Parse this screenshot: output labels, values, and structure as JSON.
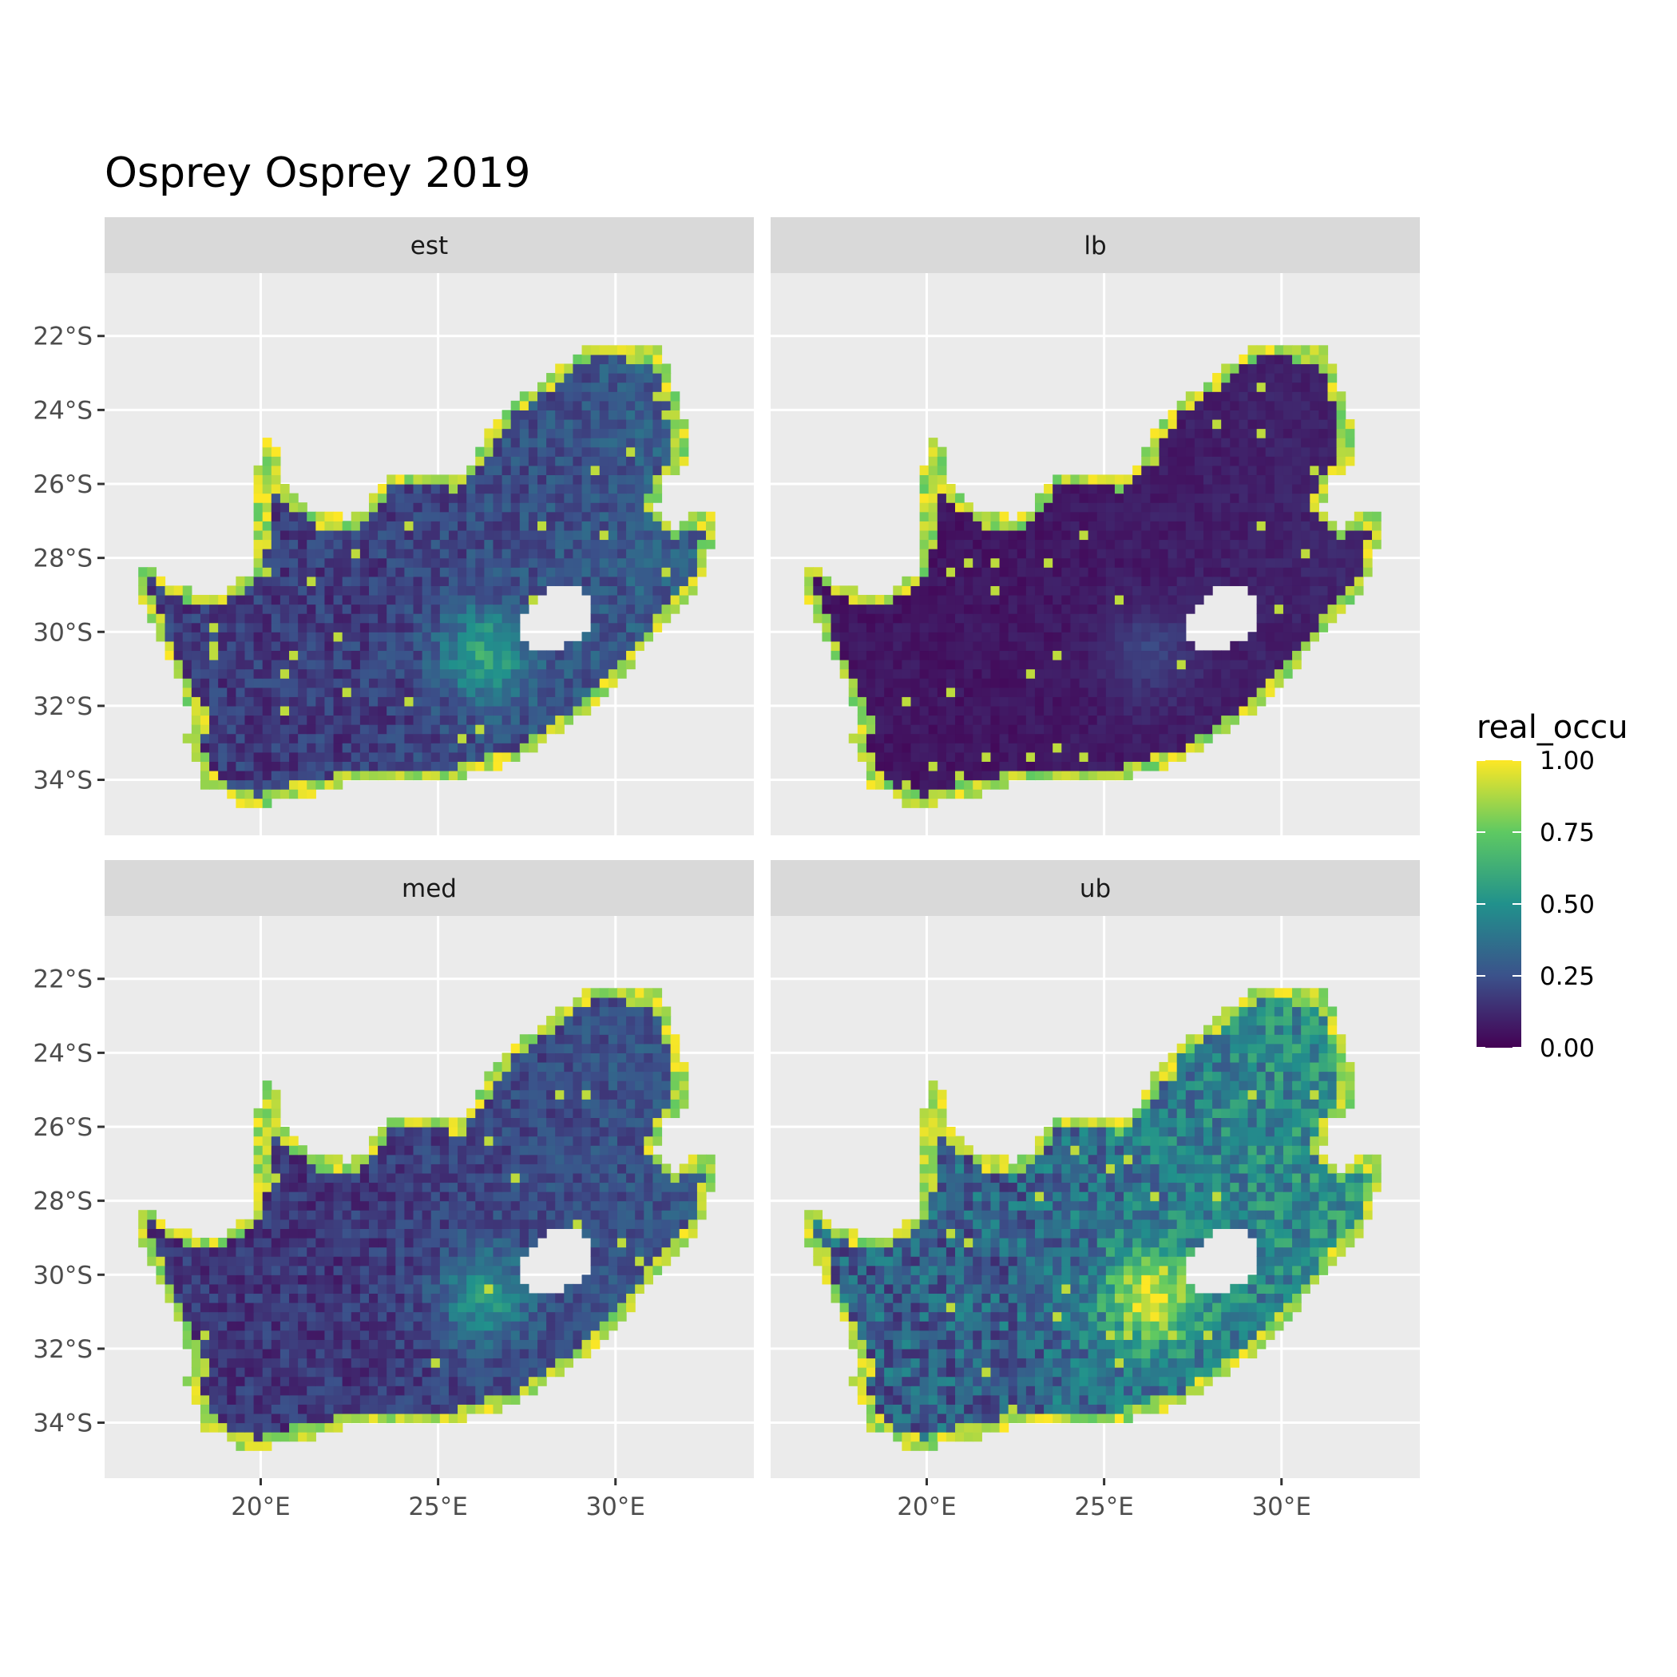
{
  "title": "Osprey Osprey 2019",
  "colors": {
    "panel_bg": "#ebebeb",
    "strip_bg": "#d9d9d9",
    "grid": "#ffffff",
    "viridis": [
      "#440154",
      "#3b528b",
      "#21918c",
      "#5ec962",
      "#fde725"
    ]
  },
  "chart_data": {
    "type": "heatmap",
    "facets": [
      {
        "label": "est",
        "level": 0.22
      },
      {
        "label": "lb",
        "level": 0.08
      },
      {
        "label": "med",
        "level": 0.2
      },
      {
        "label": "ub",
        "level": 0.38
      }
    ],
    "x_ticks": [
      "20°E",
      "25°E",
      "30°E"
    ],
    "x_tick_values": [
      20,
      25,
      30
    ],
    "y_ticks": [
      "22°S",
      "24°S",
      "26°S",
      "28°S",
      "30°S",
      "32°S",
      "34°S"
    ],
    "y_tick_values": [
      -22,
      -24,
      -26,
      -28,
      -30,
      -32,
      -34
    ],
    "xlim": [
      15.6,
      33.9
    ],
    "ylim": [
      -35.5,
      -20.3
    ],
    "legend": {
      "title": "real_occu",
      "labels": [
        "1.00",
        "0.75",
        "0.50",
        "0.25",
        "0.00"
      ],
      "values": [
        1.0,
        0.75,
        0.5,
        0.25,
        0.0
      ],
      "range": [
        0,
        1
      ],
      "placement": "right"
    }
  }
}
